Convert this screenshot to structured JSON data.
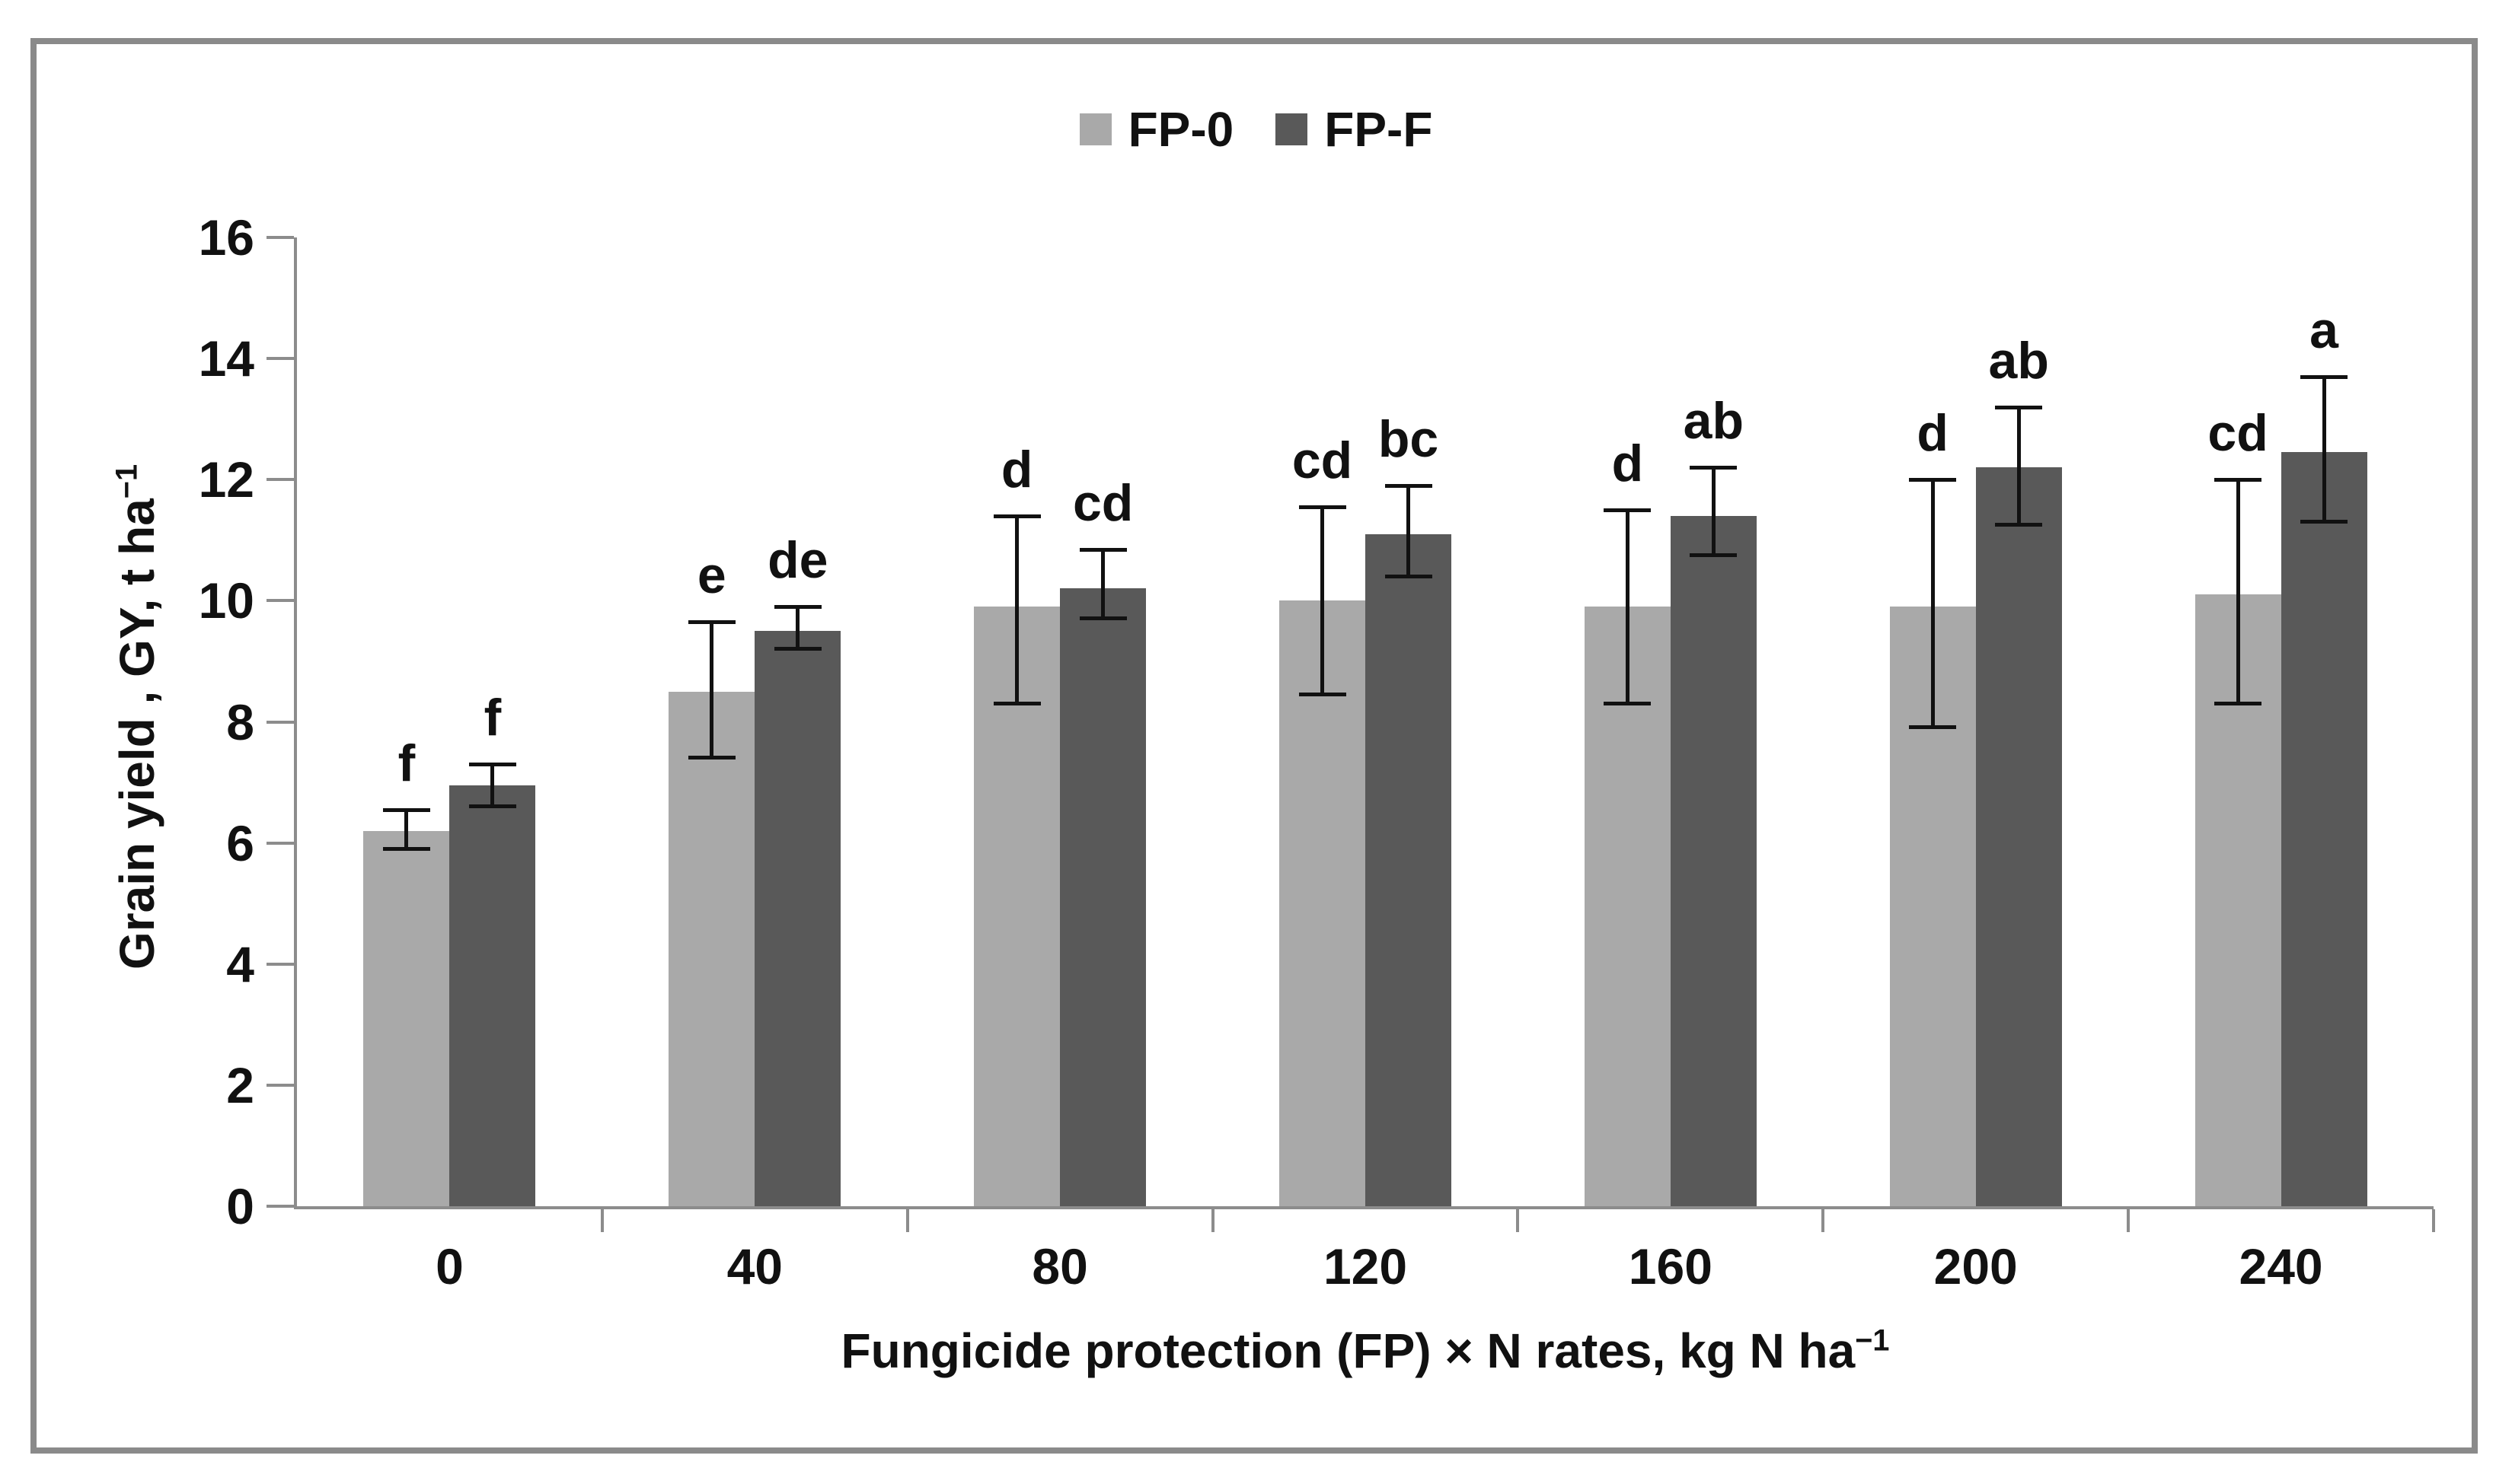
{
  "legend": {
    "items": [
      {
        "label": "FP-0",
        "color": "#a9a9a9"
      },
      {
        "label": "FP-F",
        "color": "#595959"
      }
    ]
  },
  "chart_data": {
    "type": "bar",
    "title": "",
    "categories": [
      "0",
      "40",
      "80",
      "120",
      "160",
      "200",
      "240"
    ],
    "series": [
      {
        "name": "FP-0",
        "color": "#a9a9a9",
        "values": [
          6.2,
          8.5,
          9.9,
          10.0,
          9.9,
          9.9,
          10.1
        ],
        "error_low": [
          5.9,
          7.4,
          8.3,
          8.45,
          8.3,
          7.9,
          8.3
        ],
        "error_high": [
          6.55,
          9.65,
          11.4,
          11.55,
          11.5,
          12.0,
          12.0
        ],
        "letters": [
          "f",
          "e",
          "d",
          "cd",
          "d",
          "d",
          "cd"
        ]
      },
      {
        "name": "FP-F",
        "color": "#595959",
        "values": [
          6.95,
          9.5,
          10.2,
          11.1,
          11.4,
          12.2,
          12.45
        ],
        "error_low": [
          6.6,
          9.2,
          9.7,
          10.4,
          10.75,
          11.25,
          11.3
        ],
        "error_high": [
          7.3,
          9.9,
          10.85,
          11.9,
          12.2,
          13.2,
          13.7
        ],
        "letters": [
          "f",
          "de",
          "cd",
          "bc",
          "ab",
          "ab",
          "a"
        ]
      }
    ],
    "xlabel": {
      "text": "Fungicide protection (FP) × N rates, kg N ha",
      "sup": "−1"
    },
    "ylabel": {
      "text": "Grain yield , GY, t ha",
      "sup": "−1"
    },
    "ylim": [
      0,
      16
    ],
    "y_ticks": [
      "0",
      "2",
      "4",
      "6",
      "8",
      "10",
      "12",
      "14",
      "16"
    ],
    "grid": false,
    "legend_position": "top-center",
    "colors": {
      "axis": "#8c8c8c",
      "frame": "#8a8a8a",
      "error_bars": "#111111",
      "text": "#111111"
    }
  }
}
